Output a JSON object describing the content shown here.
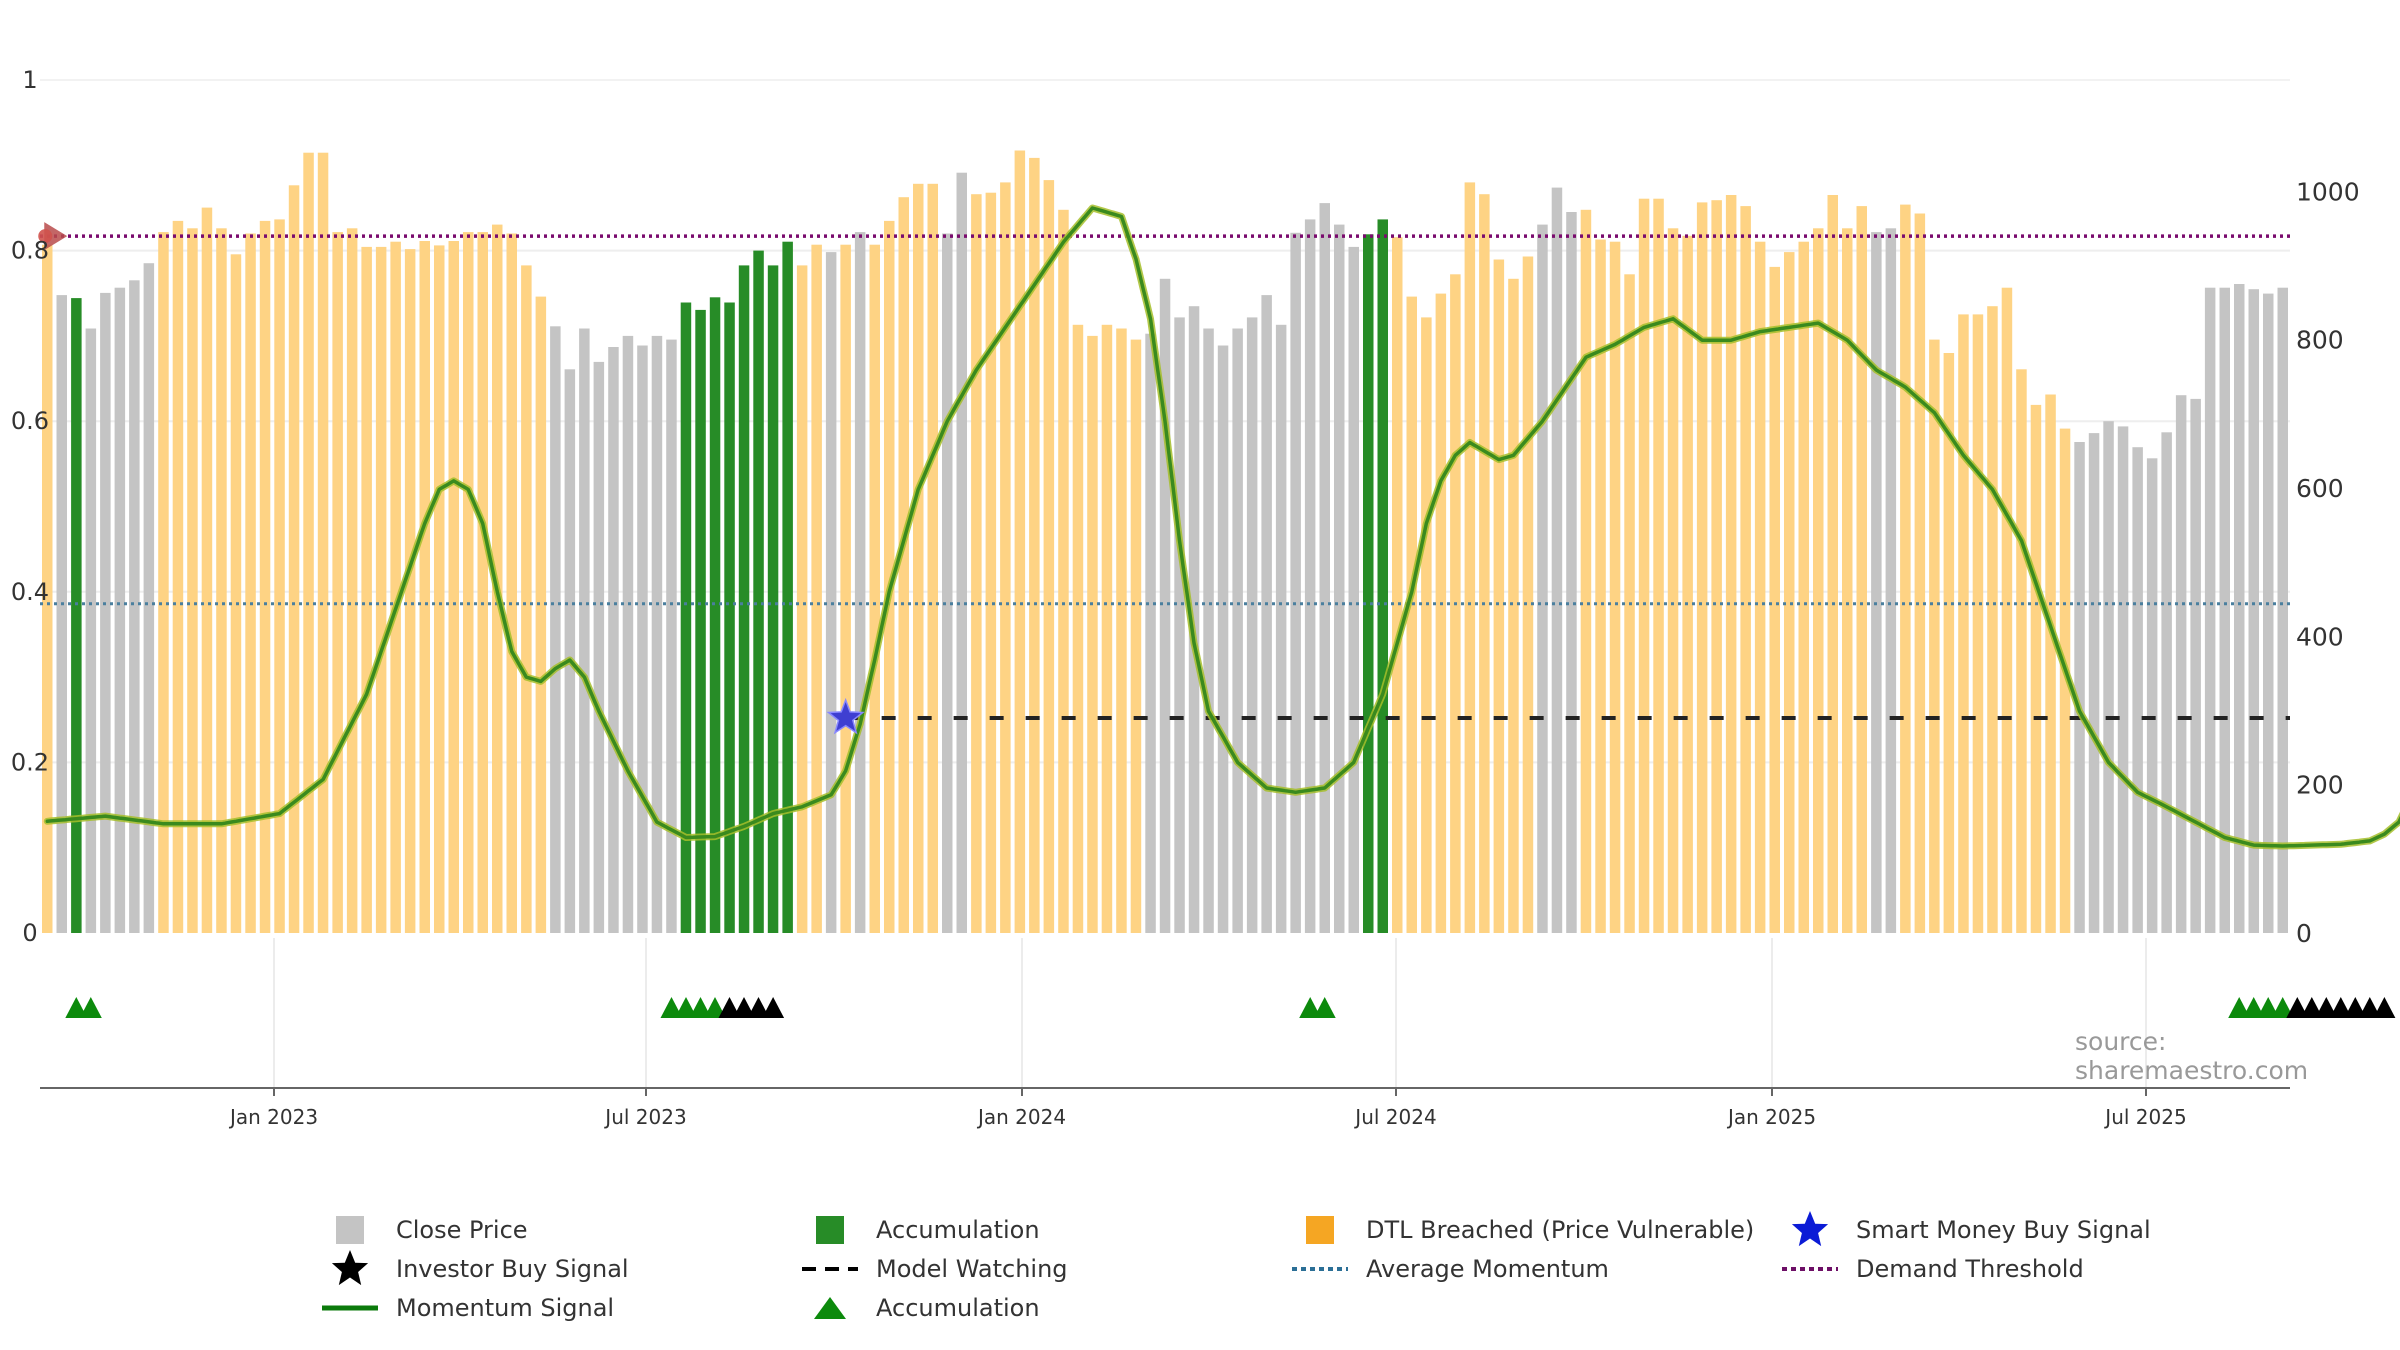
{
  "chart_data": {
    "type": "bar+line",
    "x_axis": {
      "tick_labels": [
        "Jan 2023",
        "Jul 2023",
        "Jan 2024",
        "Jul 2024",
        "Jan 2025",
        "Jul 2025"
      ]
    },
    "y_left": {
      "range": [
        0,
        1
      ],
      "tick_labels": [
        "0",
        "0.2",
        "0.4",
        "0.6",
        "0.8",
        "1"
      ]
    },
    "y_right": {
      "range": [
        0,
        1150
      ],
      "tick_labels": [
        "0",
        "200",
        "400",
        "600",
        "800",
        "1000"
      ]
    },
    "bars": {
      "name": "Close Price",
      "categories_key": "g=gray close price, a=accumulation, d=DTL breached",
      "close": [
        928,
        860,
        856,
        815,
        863,
        870,
        880,
        903,
        945,
        960,
        950,
        978,
        950,
        915,
        943,
        960,
        962,
        1008,
        1052,
        1052,
        945,
        950,
        925,
        925,
        932,
        922,
        933,
        927,
        933,
        945,
        945,
        955,
        943,
        900,
        858,
        818,
        760,
        815,
        770,
        790,
        805,
        792,
        805,
        800,
        850,
        840,
        857,
        850,
        900,
        920,
        900,
        932,
        900,
        928,
        918,
        928,
        945,
        928,
        960,
        992,
        1010,
        1010,
        943,
        1025,
        996,
        998,
        1012,
        1055,
        1045,
        1015,
        975,
        820,
        805,
        820,
        815,
        800,
        808,
        882,
        830,
        845,
        815,
        792,
        815,
        830,
        860,
        820,
        944,
        962,
        984,
        955,
        925,
        942,
        962,
        938,
        858,
        830,
        862,
        888,
        1012,
        996,
        908,
        882,
        912,
        955,
        1005,
        972,
        975,
        935,
        932,
        888,
        990,
        990,
        950,
        940,
        985,
        988,
        995,
        980,
        932,
        898,
        918,
        932,
        950,
        995,
        950,
        980,
        945,
        950,
        982,
        970,
        800,
        782,
        834,
        834,
        845,
        870,
        760,
        712,
        726,
        680,
        662,
        674,
        690,
        683,
        655,
        640,
        675,
        725,
        720,
        870,
        870,
        875,
        868,
        862,
        870
      ],
      "category": "dgagggggdddddddddddddddddddddddddddgggggggggaaaaaaaaddgdgdddddggddddddddddddgggggggggggggggaaddddddddddgggddddddddddddddddddddggddddddddddddgggggggggggggggaaaaaaaaaaaa",
      "series_colors": {
        "g": "#c4c4c4",
        "a": "#278c27",
        "d": "#fed384"
      }
    },
    "momentum_signal": {
      "name": "Momentum Signal",
      "knots": [
        [
          0,
          0.131
        ],
        [
          2,
          0.134
        ],
        [
          4,
          0.137
        ],
        [
          8,
          0.128
        ],
        [
          12,
          0.128
        ],
        [
          16,
          0.14
        ],
        [
          19,
          0.18
        ],
        [
          22,
          0.28
        ],
        [
          24,
          0.38
        ],
        [
          26,
          0.48
        ],
        [
          27,
          0.52
        ],
        [
          28,
          0.53
        ],
        [
          29,
          0.52
        ],
        [
          30,
          0.48
        ],
        [
          31,
          0.4
        ],
        [
          32,
          0.33
        ],
        [
          33,
          0.3
        ],
        [
          34,
          0.295
        ],
        [
          35,
          0.31
        ],
        [
          36,
          0.32
        ],
        [
          37,
          0.3
        ],
        [
          38,
          0.26
        ],
        [
          40,
          0.19
        ],
        [
          42,
          0.13
        ],
        [
          44,
          0.112
        ],
        [
          46,
          0.113
        ],
        [
          48,
          0.125
        ],
        [
          50,
          0.14
        ],
        [
          52,
          0.148
        ],
        [
          54,
          0.162
        ],
        [
          55,
          0.19
        ],
        [
          56,
          0.245
        ],
        [
          57,
          0.32
        ],
        [
          58,
          0.4
        ],
        [
          60,
          0.52
        ],
        [
          62,
          0.6
        ],
        [
          64,
          0.66
        ],
        [
          66,
          0.71
        ],
        [
          68,
          0.76
        ],
        [
          70,
          0.81
        ],
        [
          72,
          0.85
        ],
        [
          74,
          0.84
        ],
        [
          75,
          0.79
        ],
        [
          76,
          0.72
        ],
        [
          77,
          0.6
        ],
        [
          78,
          0.46
        ],
        [
          79,
          0.34
        ],
        [
          80,
          0.26
        ],
        [
          82,
          0.2
        ],
        [
          84,
          0.17
        ],
        [
          86,
          0.165
        ],
        [
          88,
          0.17
        ],
        [
          90,
          0.2
        ],
        [
          92,
          0.28
        ],
        [
          94,
          0.4
        ],
        [
          95,
          0.48
        ],
        [
          96,
          0.53
        ],
        [
          97,
          0.56
        ],
        [
          98,
          0.575
        ],
        [
          99,
          0.565
        ],
        [
          100,
          0.555
        ],
        [
          101,
          0.56
        ],
        [
          103,
          0.6
        ],
        [
          104,
          0.625
        ],
        [
          106,
          0.675
        ],
        [
          108,
          0.69
        ],
        [
          110,
          0.71
        ],
        [
          112,
          0.72
        ],
        [
          114,
          0.695
        ],
        [
          116,
          0.695
        ],
        [
          118,
          0.705
        ],
        [
          120,
          0.71
        ],
        [
          122,
          0.715
        ],
        [
          124,
          0.695
        ],
        [
          126,
          0.66
        ],
        [
          128,
          0.64
        ],
        [
          130,
          0.61
        ],
        [
          132,
          0.56
        ],
        [
          134,
          0.52
        ],
        [
          136,
          0.46
        ],
        [
          138,
          0.36
        ],
        [
          140,
          0.26
        ],
        [
          142,
          0.2
        ],
        [
          144,
          0.165
        ],
        [
          146,
          0.148
        ],
        [
          148,
          0.13
        ],
        [
          150,
          0.112
        ],
        [
          152,
          0.103
        ],
        [
          154,
          0.102
        ],
        [
          156,
          0.103
        ],
        [
          158,
          0.104
        ],
        [
          160,
          0.108
        ],
        [
          161,
          0.116
        ],
        [
          162,
          0.13
        ],
        [
          163,
          0.165
        ],
        [
          164,
          0.186
        ]
      ]
    },
    "average_momentum": {
      "name": "Average Momentum",
      "value": 0.386
    },
    "demand_threshold": {
      "name": "Demand Threshold",
      "value": 0.817
    },
    "model_watching": {
      "name": "Model Watching",
      "value": 0.252,
      "from_index": 55
    },
    "smart_money_buy_signal": {
      "name": "Smart Money Buy Signal",
      "index": 55,
      "value": 0.252
    },
    "dtl_marker_at_start": {
      "index": 0,
      "value": 0.817
    },
    "triangles_accumulation": [
      2,
      3,
      43,
      44,
      45,
      46,
      87,
      88,
      151,
      152,
      153,
      154
    ],
    "triangles_investor": [
      47,
      48,
      49,
      50,
      155,
      156,
      157,
      158,
      159,
      160,
      161
    ]
  },
  "legend": {
    "close_price": "Close Price",
    "accumulation_bar": "Accumulation",
    "dtl_breached": "DTL Breached (Price Vulnerable)",
    "smart_money": "Smart Money Buy Signal",
    "investor_buy": "Investor Buy Signal",
    "model_watching": "Model Watching",
    "average_momentum": "Average Momentum",
    "demand_threshold": "Demand Threshold",
    "momentum_signal": "Momentum Signal",
    "accumulation_triangle": "Accumulation"
  },
  "source": "source: sharemaestro.com",
  "colors": {
    "gray": "#c4c4c4",
    "accumulation": "#278c27",
    "dtl": "#fed384",
    "momentum": "#3a8a1e",
    "average": "#4a7f9e",
    "threshold": "#7a0b6e",
    "watching": "#222222",
    "smart_money": "#3f3fd1",
    "investor": "#000000",
    "triangle": "#0c8a0c",
    "dtl_marker": "#b84b4b"
  }
}
